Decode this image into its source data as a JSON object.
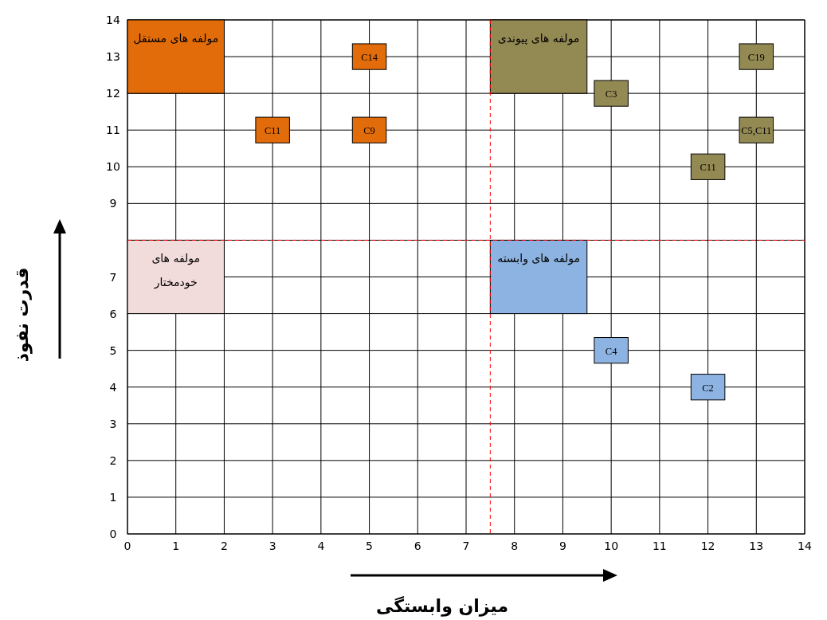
{
  "chart_data": {
    "type": "scatter",
    "xlabel": "میزان وابستگی",
    "ylabel": "قدرت نفوذ",
    "xlim": [
      0,
      14
    ],
    "ylim": [
      0,
      14
    ],
    "xticks": [
      0,
      1,
      2,
      3,
      4,
      5,
      6,
      7,
      8,
      9,
      10,
      11,
      12,
      13,
      14
    ],
    "yticks": [
      0,
      1,
      2,
      3,
      4,
      5,
      6,
      7,
      {
        "value": 8,
        "label": null
      },
      9,
      10,
      11,
      12,
      13,
      14
    ],
    "grid": true,
    "marker": "square",
    "ref_lines": [
      {
        "axis": "x",
        "value": 7.5,
        "color": "#ff0000",
        "line_style": "dashed"
      },
      {
        "axis": "y",
        "value": 8,
        "color": "#ff0000",
        "line_style": "dashed"
      }
    ],
    "annotations": [
      "مولفه های مستقل",
      "مولفه های پیوندی",
      "مولفه های خودمختار",
      "مولفه های وابسته"
    ],
    "series": [
      {
        "color": "#e36c0a",
        "x": [
          5,
          3,
          5
        ],
        "values": [
          13,
          11,
          11
        ],
        "value_labels": [
          "C14",
          "C11",
          "C9"
        ]
      },
      {
        "color": "#938953",
        "x": [
          10,
          13,
          13,
          12
        ],
        "values": [
          12,
          13,
          11,
          10
        ],
        "value_labels": [
          "C3",
          "C19",
          "C5,C11",
          "C11"
        ]
      },
      {
        "color": "#8db3e2",
        "x": [
          10,
          12
        ],
        "values": [
          5,
          4
        ],
        "value_labels": [
          "C4",
          "C2"
        ]
      }
    ]
  }
}
